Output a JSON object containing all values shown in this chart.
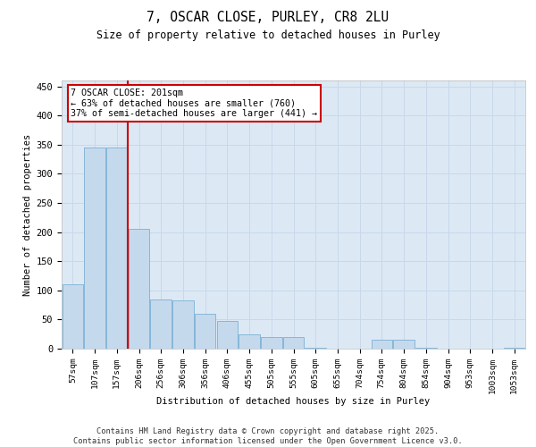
{
  "title": "7, OSCAR CLOSE, PURLEY, CR8 2LU",
  "subtitle": "Size of property relative to detached houses in Purley",
  "xlabel": "Distribution of detached houses by size in Purley",
  "ylabel": "Number of detached properties",
  "categories": [
    "57sqm",
    "107sqm",
    "157sqm",
    "206sqm",
    "256sqm",
    "306sqm",
    "356sqm",
    "406sqm",
    "455sqm",
    "505sqm",
    "555sqm",
    "605sqm",
    "655sqm",
    "704sqm",
    "754sqm",
    "804sqm",
    "854sqm",
    "904sqm",
    "953sqm",
    "1003sqm",
    "1053sqm"
  ],
  "values": [
    110,
    345,
    345,
    205,
    85,
    83,
    60,
    47,
    25,
    20,
    20,
    2,
    0,
    0,
    15,
    15,
    2,
    0,
    0,
    0,
    2
  ],
  "bar_color": "#c5d9ed",
  "bar_edge_color": "#7aafd4",
  "grid_color": "#c8d8ea",
  "background_color": "#dce9f5",
  "annotation_text": "7 OSCAR CLOSE: 201sqm\n← 63% of detached houses are smaller (760)\n37% of semi-detached houses are larger (441) →",
  "annotation_box_color": "#ffffff",
  "annotation_box_edge": "#cc0000",
  "red_line_color": "#cc0000",
  "footer": "Contains HM Land Registry data © Crown copyright and database right 2025.\nContains public sector information licensed under the Open Government Licence v3.0.",
  "ylim": [
    0,
    460
  ],
  "yticks": [
    0,
    50,
    100,
    150,
    200,
    250,
    300,
    350,
    400,
    450
  ]
}
